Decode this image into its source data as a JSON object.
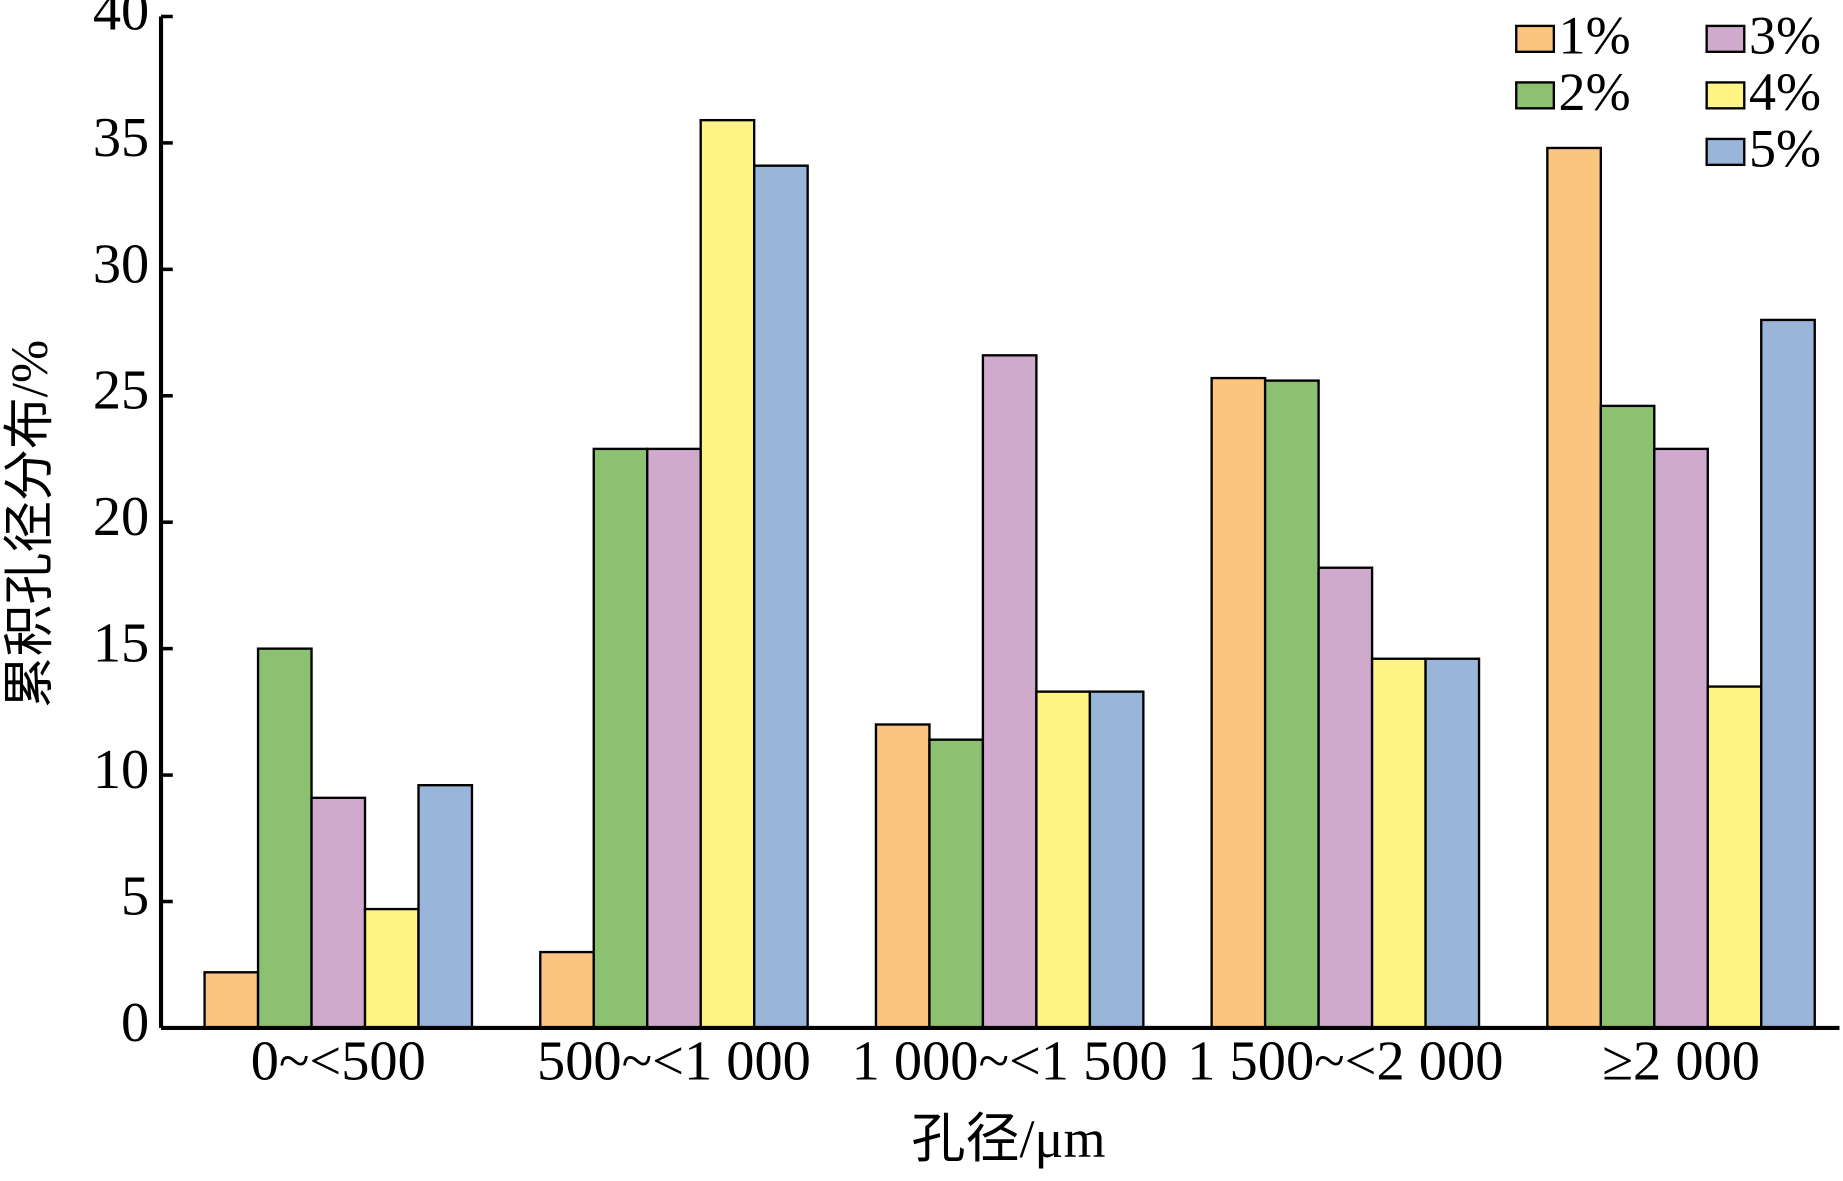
{
  "chart_data": {
    "type": "bar",
    "x_label": "孔径/μm",
    "y_label": "累积孔径分布/%",
    "categories": [
      "0~<500",
      "500~<1 000",
      "1 000~<1 500",
      "1 500~<2 000",
      "≥2 000"
    ],
    "series": [
      {
        "name": "1%",
        "color": "#fbc57f",
        "values": [
          2.2,
          3.0,
          12.0,
          25.7,
          34.8
        ]
      },
      {
        "name": "2%",
        "color": "#8bc170",
        "values": [
          15.0,
          22.9,
          11.4,
          25.6,
          24.6
        ]
      },
      {
        "name": "3%",
        "color": "#d0aacd",
        "values": [
          9.1,
          22.9,
          26.6,
          18.2,
          22.9
        ]
      },
      {
        "name": "4%",
        "color": "#fef485",
        "values": [
          4.7,
          35.9,
          13.3,
          14.6,
          13.5
        ]
      },
      {
        "name": "5%",
        "color": "#99b5da",
        "values": [
          9.6,
          34.1,
          13.3,
          14.6,
          28.0
        ]
      }
    ],
    "ylim": [
      0,
      40
    ],
    "yticks": [
      0,
      5,
      10,
      15,
      20,
      25,
      30,
      35,
      40
    ],
    "legend": "upper right"
  }
}
